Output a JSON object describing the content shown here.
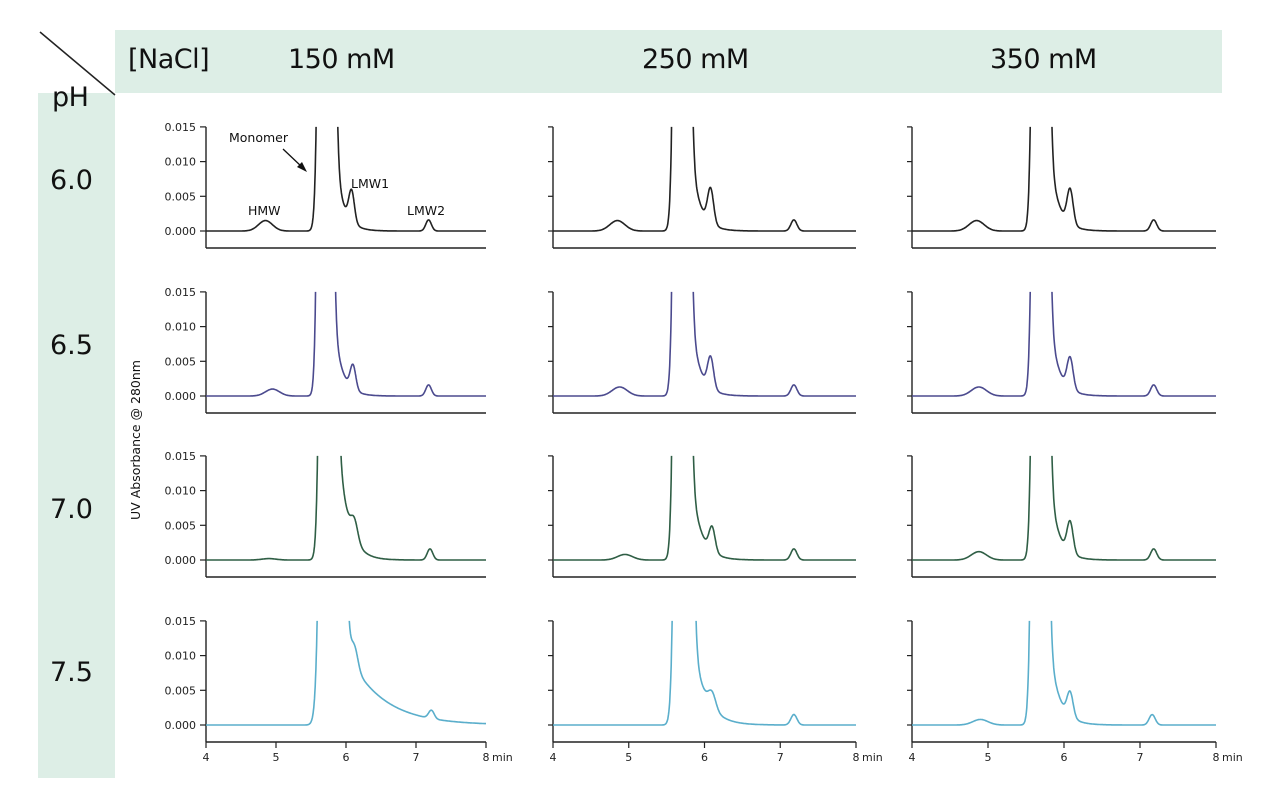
{
  "header": {
    "corner_top": "[NaCl]",
    "corner_bottom": "pH",
    "columns": [
      "150 mM",
      "250 mM",
      "350 mM"
    ]
  },
  "rows": [
    "6.0",
    "6.5",
    "7.0",
    "7.5"
  ],
  "chart_data": {
    "type": "line",
    "title": "",
    "ylabel": "UV Absorbance @ 280nm",
    "xlabel": "min",
    "xlim": [
      4,
      8
    ],
    "ylim": [
      0,
      0.015
    ],
    "xticks": [
      "4",
      "5",
      "6",
      "7",
      "8"
    ],
    "yticks": [
      "0.000",
      "0.005",
      "0.010",
      "0.015"
    ],
    "annotations": [
      "Monomer",
      "HMW",
      "LMW1",
      "LMW2"
    ],
    "colors": {
      "6.0": "#222222",
      "6.5": "#4b4a8e",
      "7.0": "#2f5e45",
      "7.5": "#5aaecb"
    },
    "panels": [
      {
        "ph": "6.0",
        "nacl": "150 mM",
        "monomer": [
          5.72,
          0.3,
          0.06
        ],
        "tail": [
          0.03,
          0.12
        ],
        "peaks": [
          [
            4.85,
            0.0015,
            0.1
          ],
          [
            6.08,
            0.0045,
            0.04
          ],
          [
            7.18,
            0.0016,
            0.04
          ]
        ]
      },
      {
        "ph": "6.0",
        "nacl": "250 mM",
        "monomer": [
          5.7,
          0.3,
          0.055
        ],
        "tail": [
          0.03,
          0.12
        ],
        "peaks": [
          [
            4.85,
            0.0015,
            0.1
          ],
          [
            6.08,
            0.005,
            0.04
          ],
          [
            7.18,
            0.0016,
            0.04
          ]
        ]
      },
      {
        "ph": "6.0",
        "nacl": "350 mM",
        "monomer": [
          5.69,
          0.3,
          0.055
        ],
        "tail": [
          0.03,
          0.12
        ],
        "peaks": [
          [
            4.85,
            0.0015,
            0.1
          ],
          [
            6.08,
            0.005,
            0.04
          ],
          [
            7.18,
            0.0016,
            0.04
          ]
        ]
      },
      {
        "ph": "6.5",
        "nacl": "150 mM",
        "monomer": [
          5.7,
          0.3,
          0.055
        ],
        "tail": [
          0.03,
          0.12
        ],
        "peaks": [
          [
            4.95,
            0.001,
            0.1
          ],
          [
            6.1,
            0.0035,
            0.04
          ],
          [
            7.18,
            0.0016,
            0.04
          ]
        ]
      },
      {
        "ph": "6.5",
        "nacl": "250 mM",
        "monomer": [
          5.7,
          0.3,
          0.055
        ],
        "tail": [
          0.03,
          0.12
        ],
        "peaks": [
          [
            4.88,
            0.0013,
            0.1
          ],
          [
            6.08,
            0.0045,
            0.04
          ],
          [
            7.18,
            0.0016,
            0.04
          ]
        ]
      },
      {
        "ph": "6.5",
        "nacl": "350 mM",
        "monomer": [
          5.69,
          0.3,
          0.055
        ],
        "tail": [
          0.03,
          0.12
        ],
        "peaks": [
          [
            4.88,
            0.0013,
            0.1
          ],
          [
            6.08,
            0.0045,
            0.04
          ],
          [
            7.18,
            0.0016,
            0.04
          ]
        ]
      },
      {
        "ph": "7.0",
        "nacl": "150 mM",
        "monomer": [
          5.74,
          0.3,
          0.06
        ],
        "tail": [
          0.05,
          0.14
        ],
        "peaks": [
          [
            4.9,
            0.0002,
            0.1
          ],
          [
            6.12,
            0.0028,
            0.05
          ],
          [
            7.2,
            0.0016,
            0.04
          ]
        ]
      },
      {
        "ph": "7.0",
        "nacl": "250 mM",
        "monomer": [
          5.7,
          0.3,
          0.055
        ],
        "tail": [
          0.03,
          0.13
        ],
        "peaks": [
          [
            4.95,
            0.0008,
            0.1
          ],
          [
            6.1,
            0.0035,
            0.04
          ],
          [
            7.18,
            0.0016,
            0.04
          ]
        ]
      },
      {
        "ph": "7.0",
        "nacl": "350 mM",
        "monomer": [
          5.69,
          0.3,
          0.055
        ],
        "tail": [
          0.03,
          0.12
        ],
        "peaks": [
          [
            4.88,
            0.0012,
            0.1
          ],
          [
            6.08,
            0.0045,
            0.04
          ],
          [
            7.18,
            0.0016,
            0.04
          ]
        ]
      },
      {
        "ph": "7.5",
        "nacl": "150 mM",
        "monomer": [
          5.8,
          0.5,
          0.08
        ],
        "tail": [
          0.016,
          0.5
        ],
        "peaks": [
          [
            6.12,
            0.003,
            0.05
          ],
          [
            7.22,
            0.0012,
            0.04
          ]
        ]
      },
      {
        "ph": "7.5",
        "nacl": "250 mM",
        "monomer": [
          5.72,
          0.3,
          0.06
        ],
        "tail": [
          0.025,
          0.17
        ],
        "peaks": [
          [
            6.1,
            0.0022,
            0.05
          ],
          [
            7.18,
            0.0015,
            0.04
          ]
        ]
      },
      {
        "ph": "7.5",
        "nacl": "350 mM",
        "monomer": [
          5.68,
          0.3,
          0.055
        ],
        "tail": [
          0.03,
          0.13
        ],
        "peaks": [
          [
            4.9,
            0.0008,
            0.1
          ],
          [
            6.08,
            0.0035,
            0.04
          ],
          [
            7.16,
            0.0015,
            0.04
          ]
        ]
      }
    ]
  }
}
